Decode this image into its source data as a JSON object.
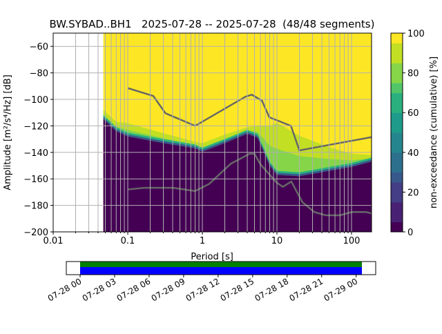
{
  "chart_data": {
    "type": "heatmap",
    "title": "BW.SYBAD..BH1   2025-07-28 -- 2025-07-28  (48/48 segments)",
    "xlabel": "Period [s]",
    "ylabel": "Amplitude [m²/s⁴/Hz] [dB]",
    "xscale": "log",
    "xlim": [
      0.01,
      185
    ],
    "ylim": [
      -200,
      -50
    ],
    "xticks": [
      {
        "v": 0.01,
        "label": "0.01"
      },
      {
        "v": 0.1,
        "label": "0.1"
      },
      {
        "v": 1,
        "label": "1"
      },
      {
        "v": 10,
        "label": "10"
      },
      {
        "v": 100,
        "label": "100"
      }
    ],
    "yticks": [
      {
        "v": -60,
        "label": "−60"
      },
      {
        "v": -80,
        "label": "−80"
      },
      {
        "v": -100,
        "label": "−100"
      },
      {
        "v": -120,
        "label": "−120"
      },
      {
        "v": -140,
        "label": "−140"
      },
      {
        "v": -160,
        "label": "−160"
      },
      {
        "v": -180,
        "label": "−180"
      },
      {
        "v": -200,
        "label": "−200"
      }
    ],
    "grid": true,
    "data_period_min": 0.047,
    "distribution": {
      "period": [
        0.047,
        0.07,
        0.1,
        0.3,
        0.8,
        1,
        2,
        4,
        5.5,
        8,
        10,
        20,
        50,
        100,
        185
      ],
      "yellow_bottom_db": [
        -108,
        -117,
        -118,
        -125.5,
        -132,
        -133,
        -126.5,
        -121,
        -120,
        -120,
        -117.6,
        -127.5,
        -136,
        -141,
        -142
      ],
      "purple_top_db": [
        -115,
        -124,
        -128,
        -133,
        -137,
        -139.5,
        -133,
        -126,
        -129,
        -150,
        -157,
        -158,
        -154,
        -151,
        -147
      ]
    },
    "series": [
      {
        "name": "NHNM",
        "color": "#666666",
        "period": [
          0.1,
          0.22,
          0.32,
          0.8,
          3.8,
          4.6,
          6.3,
          7.9,
          15.4,
          20,
          185
        ],
        "db": [
          -91.5,
          -97.4,
          -110.5,
          -120,
          -97.9,
          -96.5,
          -101,
          -113.5,
          -120,
          -138.5,
          -128.5
        ]
      },
      {
        "name": "NLNM",
        "color": "#666666",
        "period": [
          0.1,
          0.17,
          0.4,
          0.8,
          1.24,
          2.4,
          4.3,
          5,
          6,
          10,
          12,
          15.6,
          21.9,
          31.6,
          45,
          70,
          101,
          154,
          185
        ],
        "db": [
          -168,
          -166.7,
          -166.7,
          -169.2,
          -163.7,
          -148.6,
          -141.1,
          -141.1,
          -149,
          -163,
          -166,
          -162,
          -177.5,
          -185,
          -187.5,
          -187.5,
          -185,
          -185,
          -186
        ]
      }
    ],
    "colorbar": {
      "label": "non-exceedance (cumulative) [%]",
      "range": [
        0,
        100
      ],
      "ticks": [
        {
          "v": 0,
          "label": "0"
        },
        {
          "v": 20,
          "label": "20"
        },
        {
          "v": 40,
          "label": "40"
        },
        {
          "v": 60,
          "label": "60"
        },
        {
          "v": 80,
          "label": "80"
        },
        {
          "v": 100,
          "label": "100"
        }
      ],
      "colormap": [
        "#440154",
        "#482173",
        "#433e85",
        "#38588c",
        "#2d708e",
        "#25858e",
        "#1e9b8a",
        "#2ab07f",
        "#52c569",
        "#86d549",
        "#c2df23",
        "#fde725"
      ]
    },
    "coverage": {
      "start_hour": 0,
      "end_hour": 24.5,
      "xlim_hours": [
        -1.2,
        25.7
      ],
      "bar_colors": {
        "data": "#008000",
        "used": "#0000ff"
      },
      "ticks": [
        {
          "h": 0,
          "label": "07-28 00"
        },
        {
          "h": 3,
          "label": "07-28 03"
        },
        {
          "h": 6,
          "label": "07-28 06"
        },
        {
          "h": 9,
          "label": "07-28 09"
        },
        {
          "h": 12,
          "label": "07-28 12"
        },
        {
          "h": 15,
          "label": "07-28 15"
        },
        {
          "h": 18,
          "label": "07-28 18"
        },
        {
          "h": 21,
          "label": "07-28 21"
        },
        {
          "h": 24,
          "label": "07-29 00"
        }
      ]
    }
  }
}
